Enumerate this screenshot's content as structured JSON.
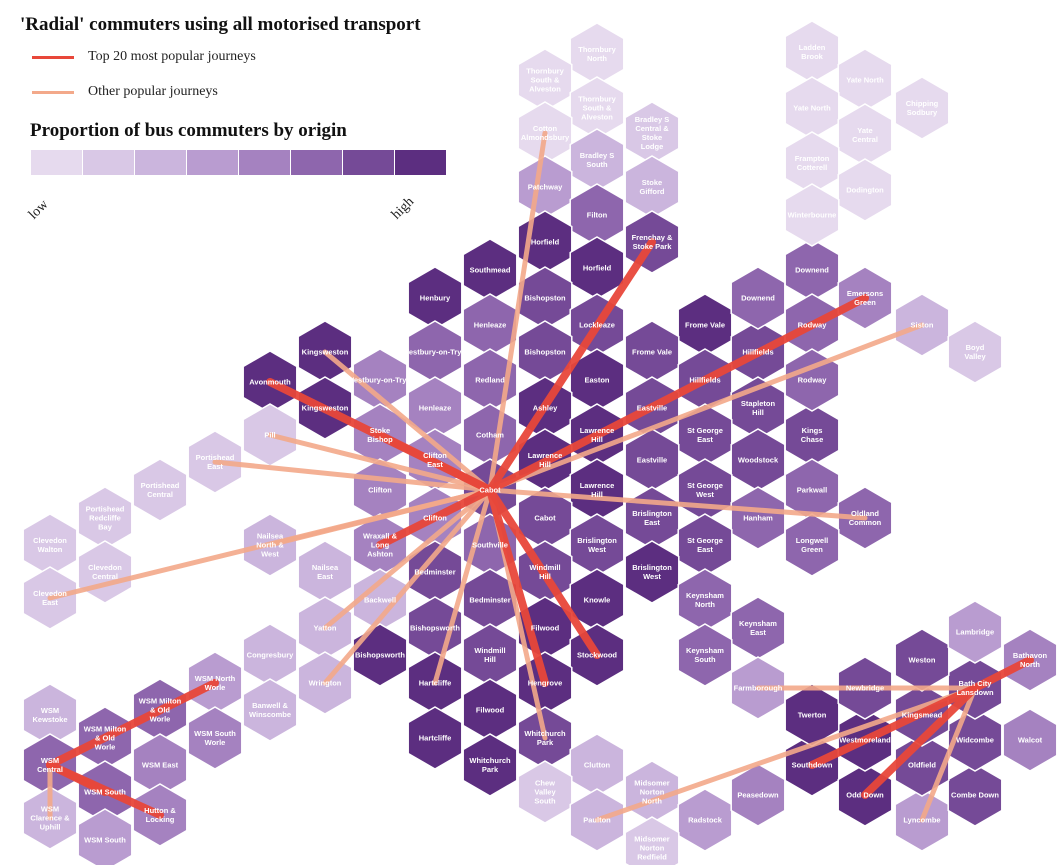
{
  "title": "'Radial' commuters using all motorised transport",
  "legend": {
    "top_label": "Top 20 most popular journeys",
    "top_color": "#e8473a",
    "other_label": "Other popular journeys",
    "other_color": "#f3a98a"
  },
  "scale": {
    "title": "Proportion of bus commuters by origin",
    "low_label": "low",
    "high_label": "high",
    "colors": [
      "#e6daee",
      "#d9c8e6",
      "#cbb5dd",
      "#b99cd0",
      "#a582c0",
      "#8e66ad",
      "#754a97",
      "#5c2e80"
    ]
  },
  "hexes": [
    {
      "n": "Thornbury North",
      "lv": 0
    },
    {
      "n": "Thornbury South & Alveston",
      "lv": 0
    },
    {
      "n": "Thornbury South & Alveston",
      "lv": 0
    },
    {
      "n": "Bradley S Central & Stoke Lodge",
      "lv": 1
    },
    {
      "n": "Cotton Almondsbury",
      "lv": 0
    },
    {
      "n": "Bradley S South",
      "lv": 2
    },
    {
      "n": "Stoke Gifford",
      "lv": 2
    },
    {
      "n": "Patchway",
      "lv": 3
    },
    {
      "n": "Filton",
      "lv": 5
    },
    {
      "n": "Horfield",
      "lv": 7
    },
    {
      "n": "Frenchay & Stoke Park",
      "lv": 6
    },
    {
      "n": "Southmead",
      "lv": 7
    },
    {
      "n": "Horfield",
      "lv": 7
    },
    {
      "n": "Henbury",
      "lv": 7
    },
    {
      "n": "Bishopston",
      "lv": 6
    },
    {
      "n": "Lockleaze",
      "lv": 6
    },
    {
      "n": "Henleaze",
      "lv": 5
    },
    {
      "n": "Frome Vale",
      "lv": 7
    },
    {
      "n": "Kingsweston",
      "lv": 7
    },
    {
      "n": "Westbury-on-Trym",
      "lv": 5
    },
    {
      "n": "Bishopston",
      "lv": 6
    },
    {
      "n": "Frome Vale",
      "lv": 6
    },
    {
      "n": "Hillfields",
      "lv": 6
    },
    {
      "n": "Avonmouth",
      "lv": 7
    },
    {
      "n": "Westbury-on-Trym",
      "lv": 4
    },
    {
      "n": "Redland",
      "lv": 5
    },
    {
      "n": "Easton",
      "lv": 7
    },
    {
      "n": "Hillfields",
      "lv": 6
    },
    {
      "n": "Kingsweston",
      "lv": 7
    },
    {
      "n": "Henleaze",
      "lv": 4
    },
    {
      "n": "Ashley",
      "lv": 7
    },
    {
      "n": "Eastville",
      "lv": 6
    },
    {
      "n": "Stapleton Hill",
      "lv": 6
    },
    {
      "n": "Stoke Bishop",
      "lv": 4
    },
    {
      "n": "Cotham",
      "lv": 5
    },
    {
      "n": "Lawrence Hill",
      "lv": 7
    },
    {
      "n": "St George East",
      "lv": 6
    },
    {
      "n": "Kings Chase",
      "lv": 6
    },
    {
      "n": "Pill",
      "lv": 1
    },
    {
      "n": "Clifton East",
      "lv": 4
    },
    {
      "n": "Lawrence Hill",
      "lv": 7
    },
    {
      "n": "Eastville",
      "lv": 6
    },
    {
      "n": "Woodstock",
      "lv": 6
    },
    {
      "n": "Portishead East",
      "lv": 1
    },
    {
      "n": "Clifton",
      "lv": 4
    },
    {
      "n": "Cabot",
      "lv": 6
    },
    {
      "n": "Lawrence Hill",
      "lv": 7
    },
    {
      "n": "St George West",
      "lv": 6
    },
    {
      "n": "Parkwall",
      "lv": 5
    },
    {
      "n": "Portishead Central",
      "lv": 1
    },
    {
      "n": "Clifton",
      "lv": 4
    },
    {
      "n": "Cabot",
      "lv": 6
    },
    {
      "n": "Brislington East",
      "lv": 6
    },
    {
      "n": "Hanham",
      "lv": 5
    },
    {
      "n": "Oldland Common",
      "lv": 5
    },
    {
      "n": "Portishead Redcliffe Bay",
      "lv": 1
    },
    {
      "n": "Nailsea North & West",
      "lv": 2
    },
    {
      "n": "Wraxall & Long Ashton",
      "lv": 4
    },
    {
      "n": "Southville",
      "lv": 5
    },
    {
      "n": "Brislington West",
      "lv": 6
    },
    {
      "n": "St George East",
      "lv": 6
    },
    {
      "n": "Longwell Green",
      "lv": 5
    },
    {
      "n": "Clevedon Walton",
      "lv": 1
    },
    {
      "n": "Clevedon Central",
      "lv": 1
    },
    {
      "n": "Nailsea East",
      "lv": 2
    },
    {
      "n": "Bedminster",
      "lv": 6
    },
    {
      "n": "Windmill Hill",
      "lv": 6
    },
    {
      "n": "Brislington West",
      "lv": 7
    },
    {
      "n": "Clevedon East",
      "lv": 1
    },
    {
      "n": "Backwell",
      "lv": 2
    },
    {
      "n": "Bedminster",
      "lv": 6
    },
    {
      "n": "Knowle",
      "lv": 7
    },
    {
      "n": "Keynsham North",
      "lv": 5
    },
    {
      "n": "Keynsham East",
      "lv": 5
    },
    {
      "n": "Yatton",
      "lv": 2
    },
    {
      "n": "Bishopsworth",
      "lv": 6
    },
    {
      "n": "Filwood",
      "lv": 7
    },
    {
      "n": "Bishopsworth",
      "lv": 7
    },
    {
      "n": "Windmill Hill",
      "lv": 6
    },
    {
      "n": "Stockwood",
      "lv": 7
    },
    {
      "n": "Keynsham South",
      "lv": 5
    },
    {
      "n": "Congresbury",
      "lv": 2
    },
    {
      "n": "Wrington",
      "lv": 2
    },
    {
      "n": "Hartcliffe",
      "lv": 7
    },
    {
      "n": "Hengrove",
      "lv": 7
    },
    {
      "n": "Farmborough",
      "lv": 3
    },
    {
      "n": "WSM North Worle",
      "lv": 3
    },
    {
      "n": "Banwell & Winscombe",
      "lv": 2
    },
    {
      "n": "Filwood",
      "lv": 7
    },
    {
      "n": "Hartcliffe",
      "lv": 7
    },
    {
      "n": "Whitchurch Park",
      "lv": 6
    },
    {
      "n": "Whitchurch Park",
      "lv": 7
    },
    {
      "n": "WSM Milton & Old Worle",
      "lv": 5
    },
    {
      "n": "WSM Milton & Old Worle",
      "lv": 5
    },
    {
      "n": "WSM South Worle",
      "lv": 4
    },
    {
      "n": "WSM Kewstoke",
      "lv": 2
    },
    {
      "n": "WSM Central",
      "lv": 5
    },
    {
      "n": "WSM East",
      "lv": 4
    },
    {
      "n": "WSM South",
      "lv": 5
    },
    {
      "n": "Hutton & Locking",
      "lv": 4
    },
    {
      "n": "WSM Clarence & Uphill",
      "lv": 2
    },
    {
      "n": "WSM South",
      "lv": 3
    },
    {
      "n": "Clutton",
      "lv": 2
    },
    {
      "n": "Chew Valley South",
      "lv": 1
    },
    {
      "n": "Midsomer Norton North",
      "lv": 2
    },
    {
      "n": "Paulton",
      "lv": 2
    },
    {
      "n": "Radstock",
      "lv": 3
    },
    {
      "n": "Midsomer Norton Redfield",
      "lv": 1
    },
    {
      "n": "Peasedown",
      "lv": 4
    },
    {
      "n": "Southdown",
      "lv": 7
    },
    {
      "n": "Odd Down",
      "lv": 7
    },
    {
      "n": "Lyncombe",
      "lv": 3
    },
    {
      "n": "Combe Down",
      "lv": 6
    },
    {
      "n": "Widcombe",
      "lv": 6
    },
    {
      "n": "Oldfield",
      "lv": 6
    },
    {
      "n": "Westmoreland",
      "lv": 7
    },
    {
      "n": "Kingsmead",
      "lv": 6
    },
    {
      "n": "Twerton",
      "lv": 7
    },
    {
      "n": "Newbridge",
      "lv": 6
    },
    {
      "n": "Bath City Lansdown",
      "lv": 6
    },
    {
      "n": "Walcot",
      "lv": 4
    },
    {
      "n": "Weston",
      "lv": 6
    },
    {
      "n": "Lambridge",
      "lv": 3
    },
    {
      "n": "Bathavon North",
      "lv": 4
    },
    {
      "n": "Downend",
      "lv": 5
    },
    {
      "n": "Downend",
      "lv": 5
    },
    {
      "n": "Rodway",
      "lv": 5
    },
    {
      "n": "Emersons Green",
      "lv": 4
    },
    {
      "n": "Rodway",
      "lv": 5
    },
    {
      "n": "Siston",
      "lv": 2
    },
    {
      "n": "Boyd Valley",
      "lv": 1
    },
    {
      "n": "Ladden Brook",
      "lv": 0
    },
    {
      "n": "Yate North",
      "lv": 0
    },
    {
      "n": "Yate North",
      "lv": 0
    },
    {
      "n": "Chipping Sodbury",
      "lv": 0
    },
    {
      "n": "Yate Central",
      "lv": 0
    },
    {
      "n": "Frampton Cotterell",
      "lv": 0
    },
    {
      "n": "Dodington",
      "lv": 0
    },
    {
      "n": "Winterbourne",
      "lv": 0
    }
  ],
  "journeys": [
    {
      "from": "Avonmouth",
      "to": "Cabot",
      "top": true
    },
    {
      "from": "Kingsweston",
      "to": "Cabot",
      "top": false
    },
    {
      "from": "Pill",
      "to": "Cabot",
      "top": false
    },
    {
      "from": "Portishead East",
      "to": "Cabot",
      "top": false
    },
    {
      "from": "Clevedon East",
      "to": "Cabot",
      "top": false
    },
    {
      "from": "Nailsea North & West",
      "to": "Cabot",
      "top": false
    },
    {
      "from": "Wraxall & Long Ashton",
      "to": "Cabot",
      "top": true
    },
    {
      "from": "Yatton",
      "to": "Cabot",
      "top": false
    },
    {
      "from": "Wrington",
      "to": "Cabot",
      "top": false
    },
    {
      "from": "Cotton Almondsbury",
      "to": "Cabot",
      "top": false
    },
    {
      "from": "Frenchay & Stoke Park",
      "to": "Cabot",
      "top": true
    },
    {
      "from": "Emersons Green",
      "to": "Cabot",
      "top": true
    },
    {
      "from": "Siston",
      "to": "Cabot",
      "top": false
    },
    {
      "from": "Oldland Common",
      "to": "Cabot",
      "top": false
    },
    {
      "from": "Hengrove",
      "to": "Cabot",
      "top": true
    },
    {
      "from": "Stockwood",
      "to": "Cabot",
      "top": true
    },
    {
      "from": "Whitchurch Park",
      "to": "Cabot",
      "top": false
    },
    {
      "from": "Hartcliffe",
      "to": "Cabot",
      "top": false
    },
    {
      "from": "Stoke Bishop",
      "to": "Cabot",
      "top": true
    },
    {
      "from": "WSM North Worle",
      "to": "WSM Central",
      "top": true
    },
    {
      "from": "WSM Clarence & Uphill",
      "to": "WSM Central",
      "top": false
    },
    {
      "from": "WSM South",
      "to": "WSM Central",
      "top": true
    },
    {
      "from": "Hutton & Locking",
      "to": "WSM Central",
      "top": true
    },
    {
      "from": "Farmborough",
      "to": "Bath City Lansdown",
      "top": false
    },
    {
      "from": "Odd Down",
      "to": "Bath City Lansdown",
      "top": true
    },
    {
      "from": "Bathavon North",
      "to": "Bath City Lansdown",
      "top": true
    },
    {
      "from": "Southdown",
      "to": "Bath City Lansdown",
      "top": true
    },
    {
      "from": "Paulton",
      "to": "Bath City Lansdown",
      "top": false
    },
    {
      "from": "Lyncombe",
      "to": "Bath City Lansdown",
      "top": false
    }
  ]
}
